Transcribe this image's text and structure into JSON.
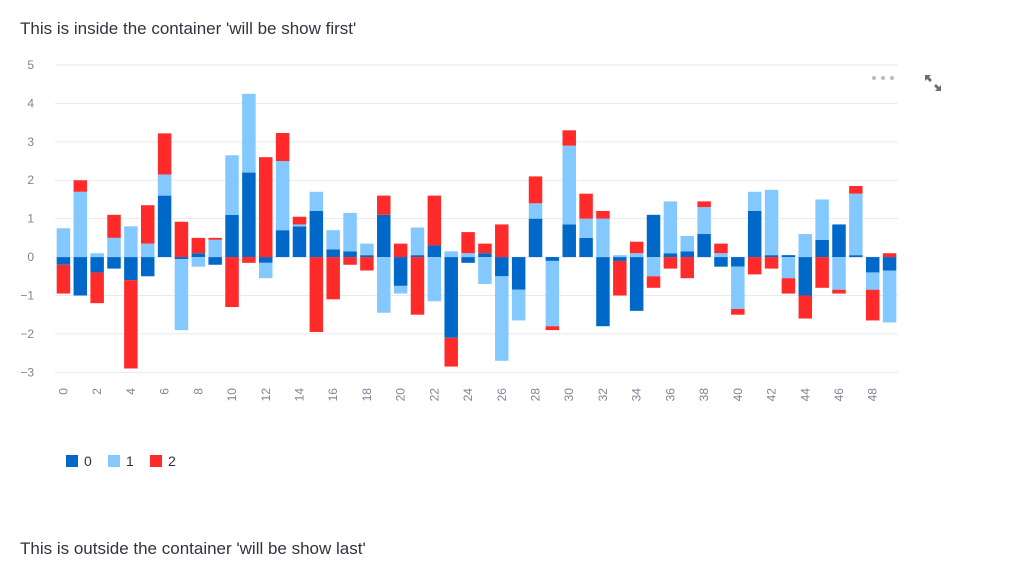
{
  "texts": {
    "inside": "This is inside the container 'will be show first'",
    "outside": "This is outside the container 'will be show last'"
  },
  "toolbar": {
    "menu_icon": "more-horizontal-icon",
    "fullscreen_icon": "fullscreen-expand-icon"
  },
  "chart_data": {
    "type": "bar",
    "stacked": true,
    "grid": true,
    "legend_position": "bottom-left",
    "ylim": [
      -3.2,
      5
    ],
    "yticks": [
      -3,
      -2,
      -1,
      0,
      1,
      2,
      3,
      4,
      5
    ],
    "xtick_labels": [
      "0",
      "2",
      "4",
      "6",
      "8",
      "10",
      "12",
      "14",
      "16",
      "18",
      "20",
      "22",
      "24",
      "26",
      "28",
      "30",
      "32",
      "34",
      "36",
      "38",
      "40",
      "42",
      "44",
      "46",
      "48"
    ],
    "categories": [
      0,
      1,
      2,
      3,
      4,
      5,
      6,
      7,
      8,
      9,
      10,
      11,
      12,
      13,
      14,
      15,
      16,
      17,
      18,
      19,
      20,
      21,
      22,
      23,
      24,
      25,
      26,
      27,
      28,
      29,
      30,
      31,
      32,
      33,
      34,
      35,
      36,
      37,
      38,
      39,
      40,
      41,
      42,
      43,
      44,
      45,
      46,
      47,
      48,
      49
    ],
    "colors": [
      "#0068c9",
      "#83c9ff",
      "#ff2b2b"
    ],
    "series": [
      {
        "name": "0",
        "values": [
          -0.2,
          -1.0,
          -0.4,
          -0.3,
          -0.6,
          -0.5,
          1.6,
          -0.05,
          0.1,
          -0.2,
          1.1,
          2.2,
          -0.15,
          0.7,
          0.8,
          1.2,
          0.2,
          0.15,
          0.05,
          1.1,
          -0.75,
          0.05,
          0.3,
          -2.1,
          -0.15,
          0.1,
          -0.5,
          -0.85,
          1.0,
          -0.1,
          0.85,
          0.5,
          -1.8,
          -0.1,
          -1.4,
          1.1,
          0.1,
          0.15,
          0.6,
          -0.25,
          -0.25,
          1.2,
          0.05,
          0.05,
          -1.0,
          0.45,
          0.85,
          0.05,
          -0.4,
          -0.35
        ]
      },
      {
        "name": "1",
        "values": [
          0.75,
          1.7,
          0.1,
          0.5,
          0.8,
          0.35,
          0.55,
          -1.85,
          -0.25,
          0.45,
          1.55,
          2.05,
          -0.4,
          1.8,
          0.05,
          0.5,
          0.5,
          1.0,
          0.3,
          -1.45,
          -0.2,
          0.72,
          -1.15,
          0.15,
          0.1,
          -0.7,
          -2.2,
          -0.8,
          0.4,
          -1.7,
          2.05,
          0.5,
          1.0,
          0.05,
          0.1,
          -0.5,
          1.35,
          0.4,
          0.7,
          0.1,
          -1.1,
          0.5,
          1.7,
          -0.55,
          0.6,
          1.05,
          -0.85,
          1.6,
          -0.45,
          -1.35
        ]
      },
      {
        "name": "2",
        "values": [
          -0.75,
          0.3,
          -0.8,
          0.6,
          -2.3,
          1.0,
          1.07,
          0.92,
          0.4,
          0.05,
          -1.3,
          -0.15,
          2.6,
          0.73,
          0.2,
          -1.95,
          -1.1,
          -0.2,
          -0.35,
          0.5,
          0.35,
          -1.5,
          1.3,
          -0.75,
          0.55,
          0.25,
          0.85,
          0.0,
          0.7,
          -0.1,
          0.4,
          0.65,
          0.2,
          -0.9,
          0.3,
          -0.3,
          -0.3,
          -0.55,
          0.15,
          0.25,
          -0.15,
          -0.45,
          -0.3,
          -0.4,
          -0.6,
          -0.8,
          -0.1,
          0.2,
          -0.8,
          0.1
        ]
      }
    ]
  }
}
